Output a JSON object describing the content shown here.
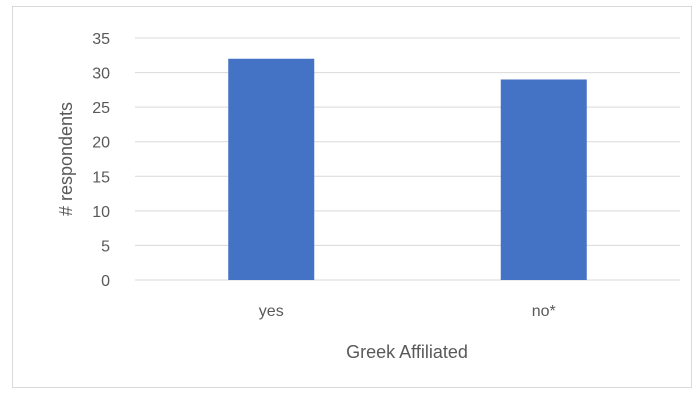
{
  "chart_data": {
    "type": "bar",
    "categories": [
      "yes",
      "no*"
    ],
    "values": [
      32,
      29
    ],
    "xlabel": "Greek Affiliated",
    "ylabel": "# respondents",
    "ylim": [
      0,
      35
    ],
    "yticks": [
      0,
      5,
      10,
      15,
      20,
      25,
      30,
      35
    ],
    "grid": true,
    "legend": "none",
    "bar_color": "#4472C4",
    "grid_color": "#d9d9d9",
    "text_color": "#595959"
  }
}
